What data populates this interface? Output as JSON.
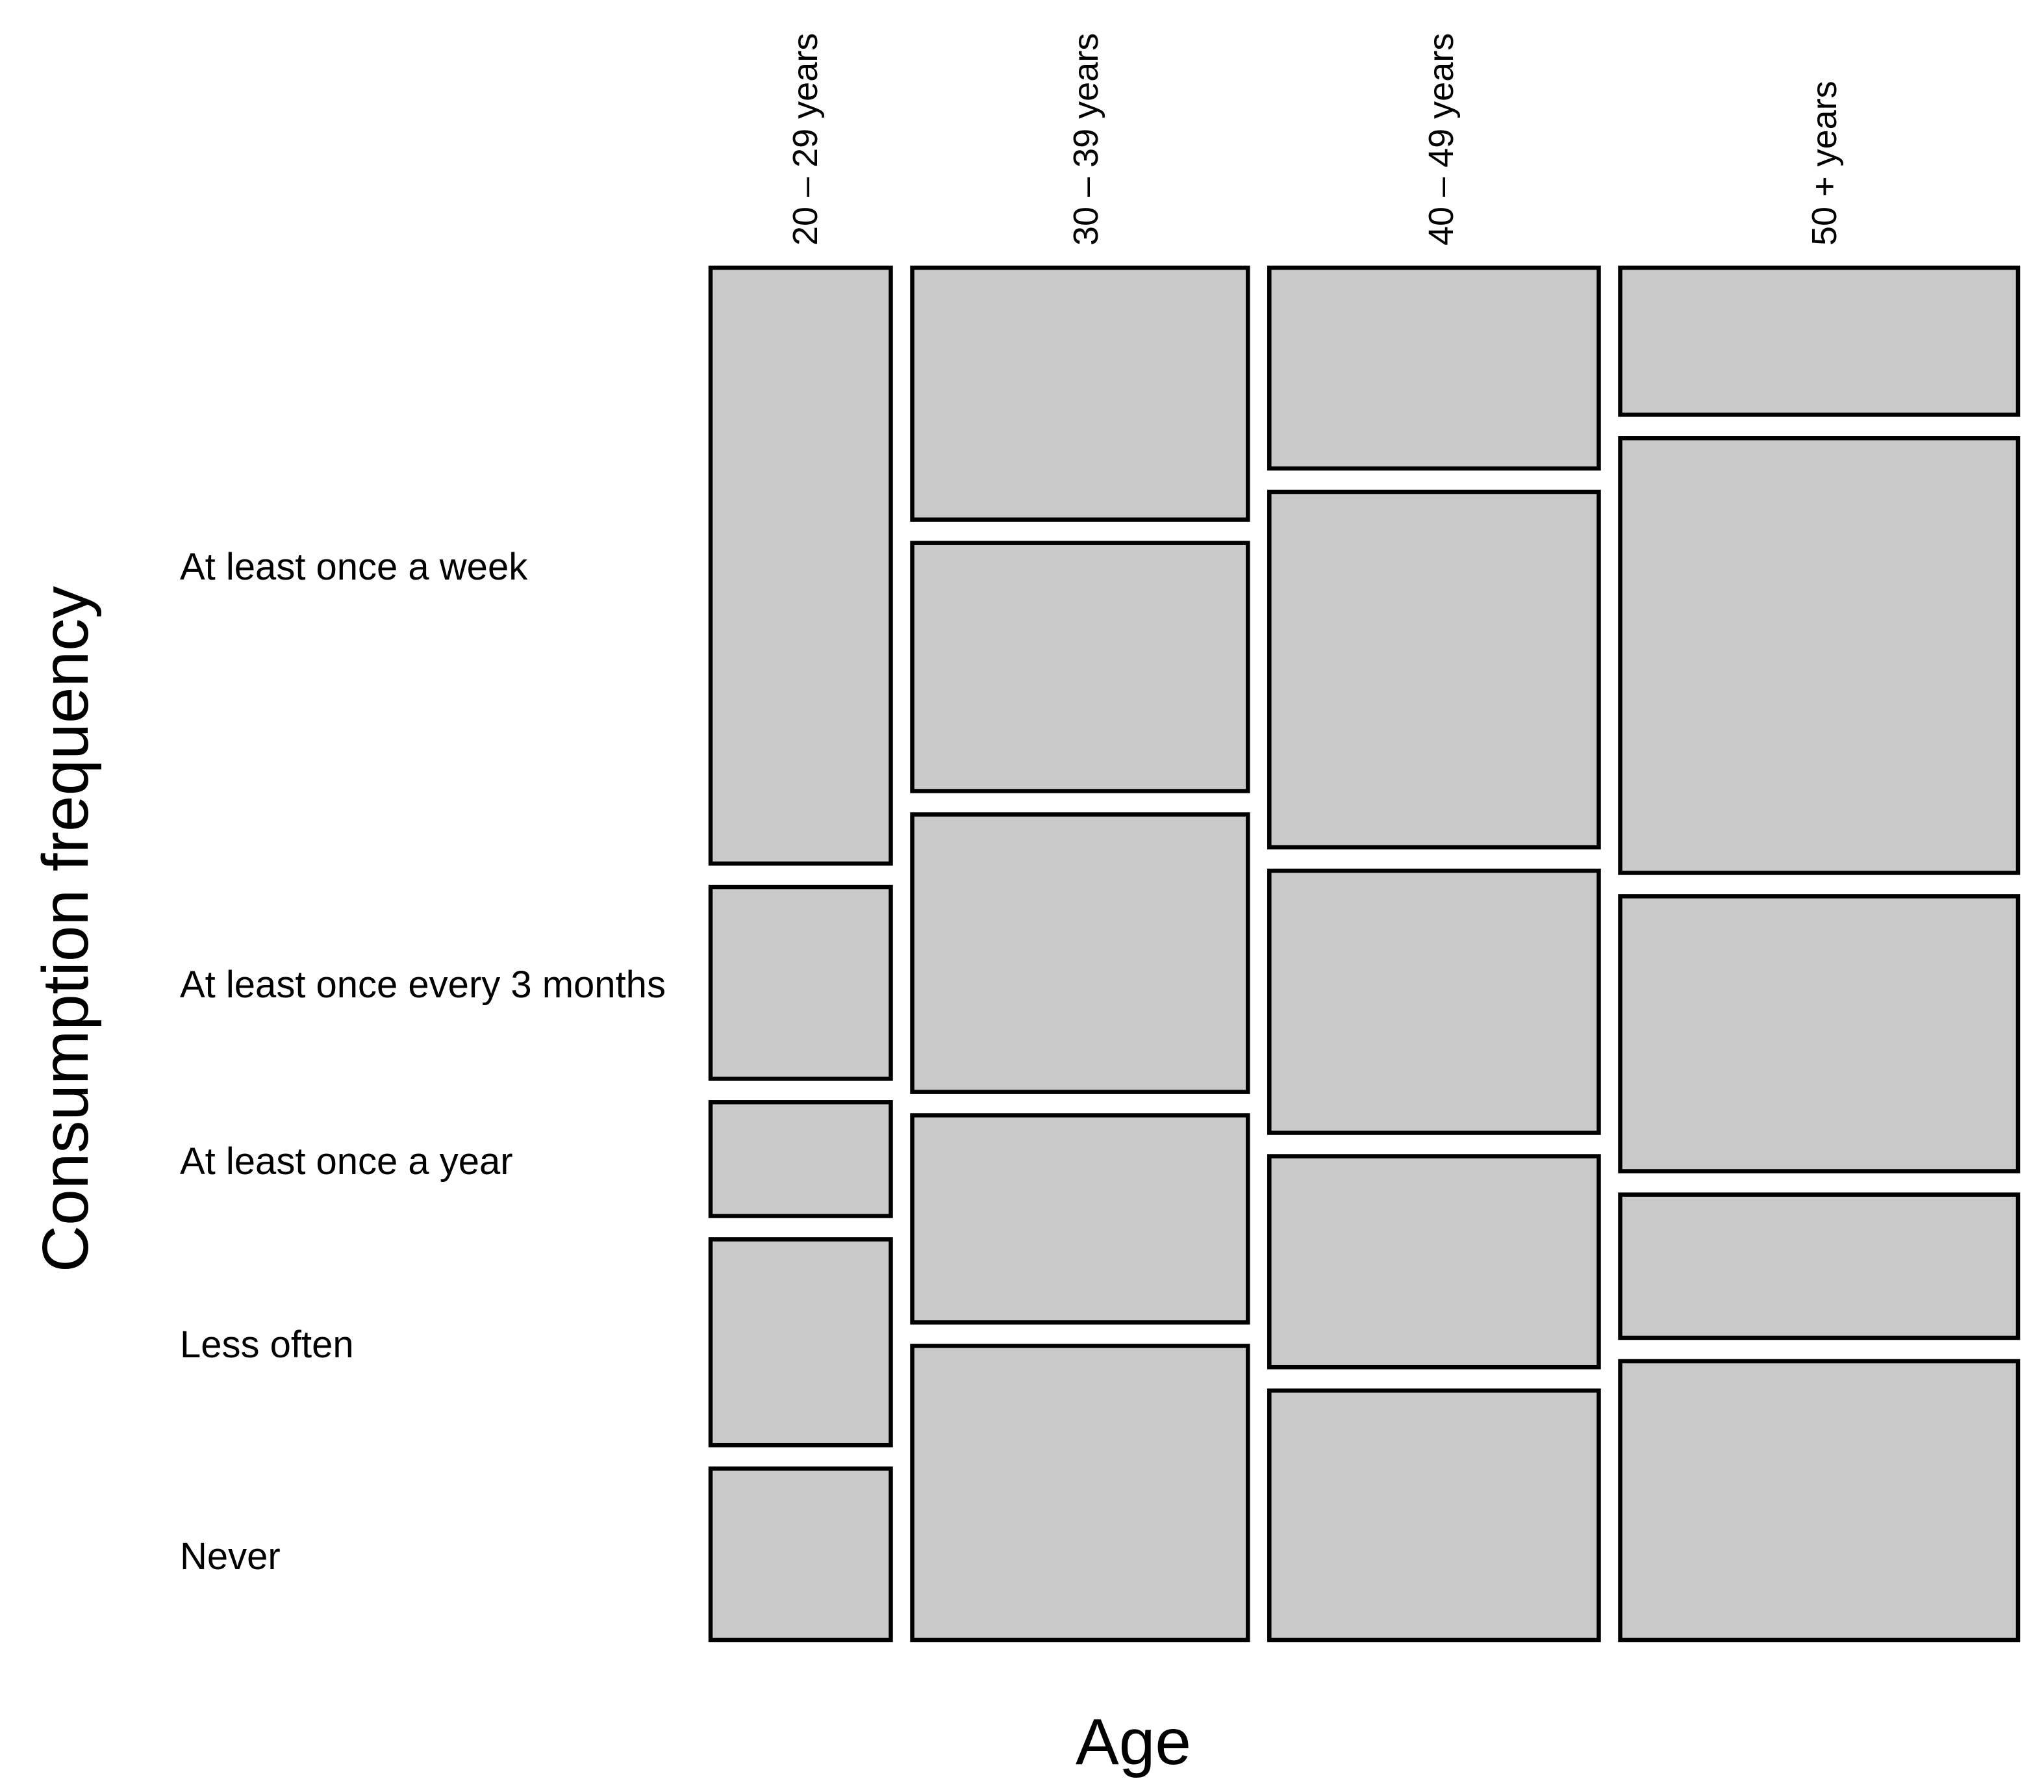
{
  "figure": {
    "background": "#ffffff"
  },
  "chart_data": {
    "type": "mosaic",
    "title": "",
    "xlabel": "Age",
    "ylabel": "Consumption frequency",
    "x_categories": [
      "20 – 29 years",
      "30 – 39 years",
      "40 – 49 years",
      "50 + years"
    ],
    "y_categories": [
      "At least once a week",
      "At least once every 3 months",
      "At least once a year",
      "Less often",
      "Never"
    ],
    "column_width_shares": [
      0.145,
      0.27,
      0.265,
      0.32
    ],
    "cell_height_shares": [
      [
        0.466,
        0.15,
        0.089,
        0.161,
        0.134
      ],
      [
        0.197,
        0.194,
        0.217,
        0.162,
        0.23
      ],
      [
        0.157,
        0.278,
        0.205,
        0.165,
        0.195
      ],
      [
        0.115,
        0.34,
        0.215,
        0.112,
        0.218
      ]
    ],
    "legend": "none",
    "grid": false,
    "style": {
      "cell_fill": "#c9c9c9",
      "cell_border": "#000000",
      "cell_border_width": 6.5,
      "background": "#ffffff"
    }
  }
}
